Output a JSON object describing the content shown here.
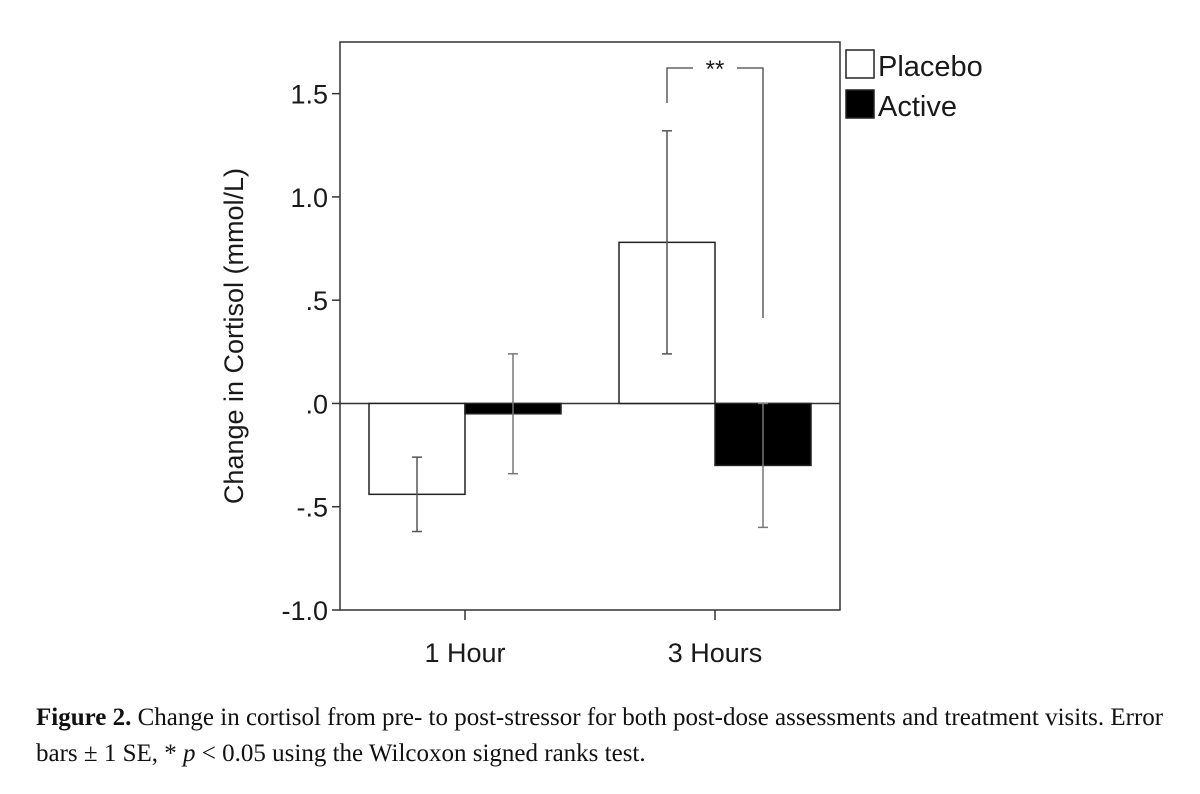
{
  "chart_data": {
    "type": "bar",
    "title": "",
    "xlabel": "",
    "ylabel": "Change in Cortisol (mmol/L)",
    "ylim": [
      -1.0,
      1.75
    ],
    "yticks": [
      {
        "value": 1.5,
        "label": "1.5"
      },
      {
        "value": 1.0,
        "label": "1.0"
      },
      {
        "value": 0.5,
        "label": ".5"
      },
      {
        "value": 0.0,
        "label": ".0"
      },
      {
        "value": -0.5,
        "label": "-.5"
      },
      {
        "value": -1.0,
        "label": "-1.0"
      }
    ],
    "categories": [
      "1 Hour",
      "3 Hours"
    ],
    "series": [
      {
        "name": "Placebo",
        "color": "#ffffff",
        "values": [
          -0.44,
          0.78
        ],
        "err_low": [
          -0.62,
          0.24
        ],
        "err_high": [
          -0.26,
          1.32
        ]
      },
      {
        "name": "Active",
        "color": "#000000",
        "values": [
          -0.05,
          -0.3
        ],
        "err_low": [
          -0.34,
          -0.6
        ],
        "err_high": [
          0.24,
          0.0
        ]
      }
    ],
    "legend": [
      "Placebo",
      "Active"
    ],
    "legend_position": "top-right",
    "annotations": [
      {
        "text": "**",
        "category": "3 Hours",
        "between": [
          "Placebo",
          "Active"
        ]
      }
    ]
  },
  "caption": {
    "label": "Figure 2.",
    "text_1": " Change in cortisol from pre- to post-stressor for both post-dose assessments and treatment visits. Error bars ± 1 SE, * ",
    "p_symbol": "p",
    "text_2": " < 0.05 using the Wilcoxon signed ranks test."
  }
}
